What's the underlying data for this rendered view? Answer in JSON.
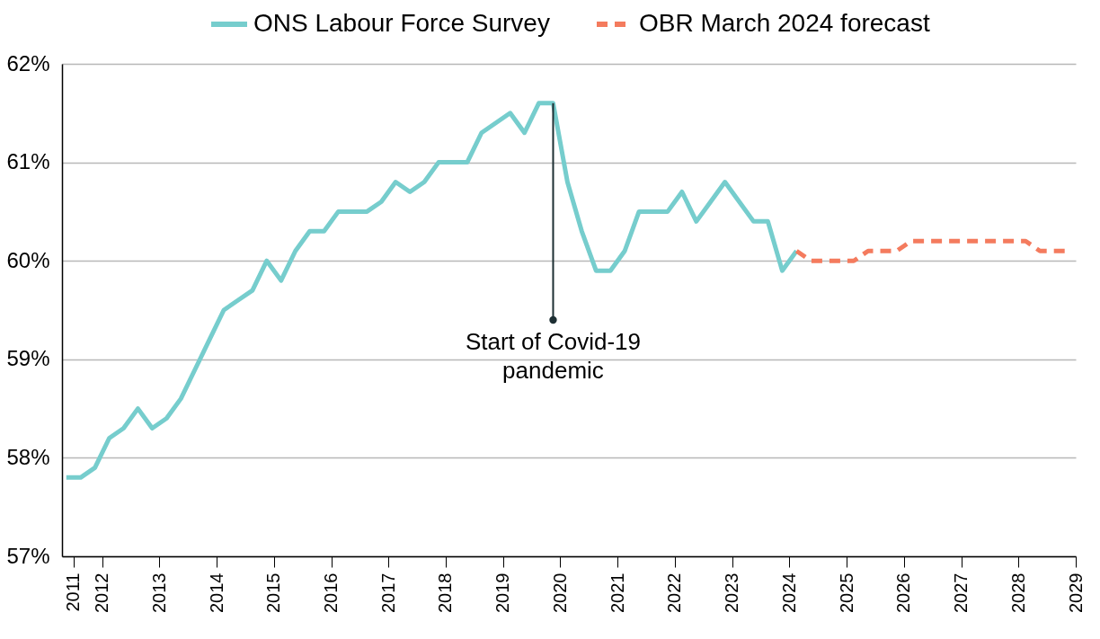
{
  "chart_data": {
    "type": "line",
    "x": [
      2011.375,
      2011.625,
      2011.875,
      2012.125,
      2012.375,
      2012.625,
      2012.875,
      2013.125,
      2013.375,
      2013.625,
      2013.875,
      2014.125,
      2014.375,
      2014.625,
      2014.875,
      2015.125,
      2015.375,
      2015.625,
      2015.875,
      2016.125,
      2016.375,
      2016.625,
      2016.875,
      2017.125,
      2017.375,
      2017.625,
      2017.875,
      2018.125,
      2018.375,
      2018.625,
      2018.875,
      2019.125,
      2019.375,
      2019.625,
      2019.875,
      2020.125,
      2020.375,
      2020.625,
      2020.875,
      2021.125,
      2021.375,
      2021.625,
      2021.875,
      2022.125,
      2022.375,
      2022.625,
      2022.875,
      2023.125,
      2023.375,
      2023.625,
      2023.875,
      2024.125
    ],
    "series": [
      {
        "name": "ONS Labour Force Survey",
        "color": "#76cdcd",
        "line_style": "solid",
        "values": [
          57.8,
          57.8,
          57.9,
          58.2,
          58.3,
          58.5,
          58.3,
          58.4,
          58.6,
          58.9,
          59.2,
          59.5,
          59.6,
          59.7,
          60.0,
          59.8,
          60.1,
          60.3,
          60.3,
          60.5,
          60.5,
          60.5,
          60.6,
          60.8,
          60.7,
          60.8,
          61.0,
          61.0,
          61.0,
          61.3,
          61.4,
          61.5,
          61.3,
          61.6,
          61.6,
          60.8,
          60.3,
          59.9,
          59.9,
          60.1,
          60.5,
          60.5,
          60.5,
          60.7,
          60.4,
          60.6,
          60.8,
          60.6,
          60.4,
          60.4,
          59.9,
          60.1
        ]
      },
      {
        "name": "OBR March 2024 forecast",
        "color": "#f47b5e",
        "line_style": "dashed",
        "x": [
          2024.125,
          2024.375,
          2024.625,
          2024.875,
          2025.125,
          2025.375,
          2025.625,
          2025.875,
          2026.125,
          2026.375,
          2026.625,
          2026.875,
          2027.125,
          2027.375,
          2027.625,
          2027.875,
          2028.125,
          2028.375,
          2028.625,
          2028.875
        ],
        "values": [
          60.1,
          60.0,
          60.0,
          60.0,
          60.0,
          60.1,
          60.1,
          60.1,
          60.2,
          60.2,
          60.2,
          60.2,
          60.2,
          60.2,
          60.2,
          60.2,
          60.2,
          60.1,
          60.1,
          60.1
        ]
      }
    ],
    "xlim": [
      2011.3,
      2029
    ],
    "xticks": [
      {
        "value": 2011.5,
        "label": "2011"
      },
      2012,
      2013,
      2014,
      2015,
      2016,
      2017,
      2018,
      2019,
      2020,
      2021,
      2022,
      2023,
      2024,
      2025,
      2026,
      2027,
      2028,
      2029
    ],
    "ylim": [
      57,
      62
    ],
    "yticks": [
      {
        "value": 57,
        "label": "57%"
      },
      {
        "value": 58,
        "label": "58%"
      },
      {
        "value": 59,
        "label": "59%"
      },
      {
        "value": 60,
        "label": "60%"
      },
      {
        "value": 61,
        "label": "61%"
      },
      {
        "value": 62,
        "label": "62%"
      }
    ],
    "annotations": [
      {
        "text": "Start of Covid-19\npandemic",
        "x": 2019.875,
        "y": 59.4
      }
    ],
    "grid": "y",
    "legend": "top"
  }
}
